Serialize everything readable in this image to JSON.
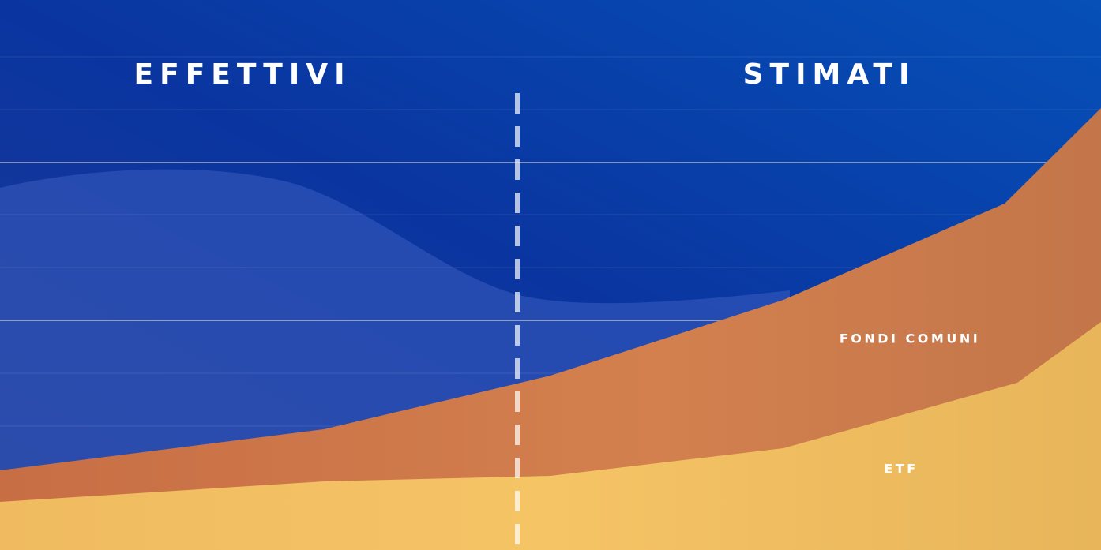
{
  "header": {
    "left_label": "EFFETTIVI",
    "right_label": "STIMATI"
  },
  "areas": [
    {
      "label": "FONDI COMUNI"
    },
    {
      "label": "ETF"
    }
  ]
}
